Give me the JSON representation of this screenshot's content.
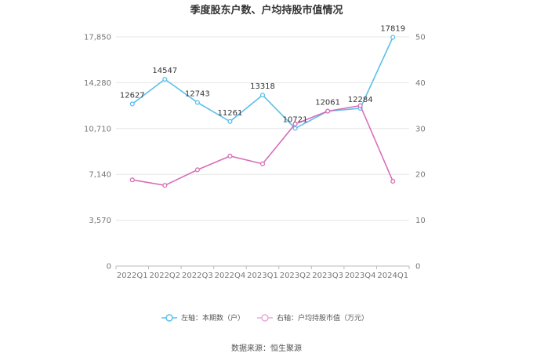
{
  "chart_data": {
    "type": "line",
    "title": "季度股东户数、户均持股市值情况",
    "categories": [
      "2022Q1",
      "2022Q2",
      "2022Q3",
      "2022Q4",
      "2023Q1",
      "2023Q2",
      "2023Q3",
      "2023Q4",
      "2024Q1"
    ],
    "series": [
      {
        "name": "左轴：本期数（户）",
        "axis": "left",
        "color": "#5bc0eb",
        "values": [
          12627,
          14547,
          12743,
          11261,
          13318,
          10721,
          12061,
          12284,
          17819
        ],
        "labels": [
          "12627",
          "14547",
          "12743",
          "11261",
          "13318",
          "10721",
          "12061",
          "12284",
          "17819"
        ]
      },
      {
        "name": "右轴：户均持股市值（万元）",
        "axis": "right",
        "color": "#d96eb9",
        "values": [
          18.8,
          17.6,
          21.0,
          24.0,
          22.3,
          31.0,
          33.8,
          35.0,
          18.5
        ]
      }
    ],
    "left_axis": {
      "ylim": [
        0,
        17850
      ],
      "ticks": [
        "0",
        "3,570",
        "7,140",
        "10,710",
        "14,280",
        "17,850"
      ]
    },
    "right_axis": {
      "ylim": [
        0,
        50
      ],
      "ticks": [
        "0",
        "10",
        "20",
        "30",
        "40",
        "50"
      ]
    },
    "grid": true,
    "legend": "bottom-center"
  },
  "footer": {
    "source": "数据来源：恒生聚源"
  }
}
